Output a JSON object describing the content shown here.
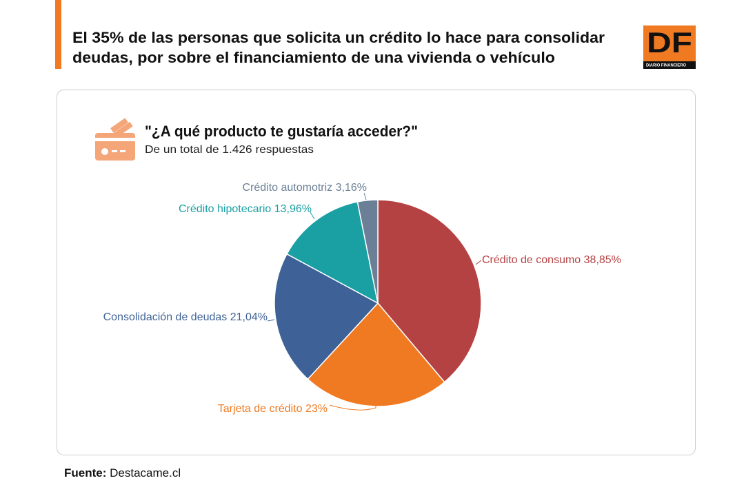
{
  "header": {
    "title_lines": [
      "El 35% de las personas que solicita un crédito lo hace para consolidar",
      "deudas, por sobre el financiamiento de una vivienda o vehículo"
    ],
    "logo": "DF",
    "logo_caption": "DIARIO FINANCIERO"
  },
  "chart_data": {
    "type": "pie",
    "title": "\"¿A qué producto te gustaría acceder?\"",
    "subtitle": "De un total de 1.426 respuestas",
    "categories": [
      "Crédito de consumo",
      "Tarjeta de crédito",
      "Consolidación de deudas",
      "Crédito hipotecario",
      "Crédito automotriz"
    ],
    "values": [
      38.85,
      23,
      21.04,
      13.96,
      3.16
    ],
    "value_labels": [
      "38,85%",
      "23%",
      "21,04%",
      "13,96%",
      "3,16%"
    ],
    "colors": [
      "#b54243",
      "#f07a22",
      "#3e6297",
      "#1a9fa3",
      "#6b8097"
    ]
  },
  "source": {
    "label": "Fuente:",
    "text": "Destacame.cl"
  }
}
